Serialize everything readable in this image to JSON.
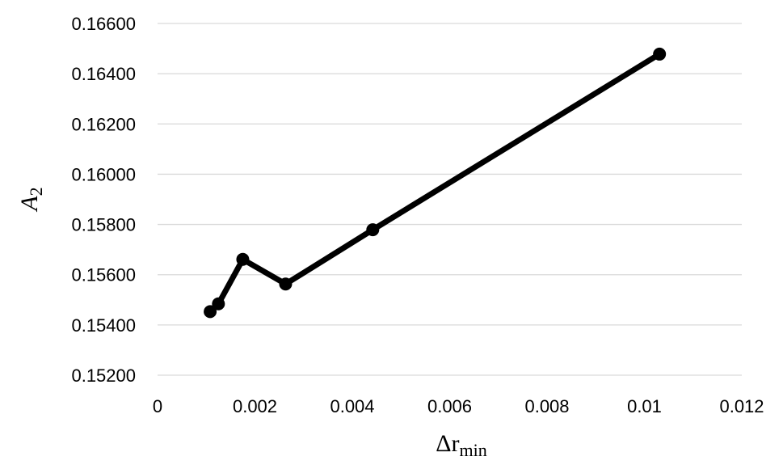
{
  "chart_data": {
    "type": "line",
    "xlabel": "Δr",
    "xlabel_sub": "min",
    "ylabel": "A",
    "ylabel_sub": "2",
    "xlim": [
      0,
      0.012
    ],
    "ylim": [
      0.152,
      0.166
    ],
    "x_ticks": [
      {
        "value": 0,
        "label": "0"
      },
      {
        "value": 0.002,
        "label": "0.002"
      },
      {
        "value": 0.004,
        "label": "0.004"
      },
      {
        "value": 0.006,
        "label": "0.006"
      },
      {
        "value": 0.008,
        "label": "0.008"
      },
      {
        "value": 0.01,
        "label": "0.01"
      },
      {
        "value": 0.012,
        "label": "0.012"
      }
    ],
    "y_ticks": [
      {
        "value": 0.152,
        "label": "0.15200"
      },
      {
        "value": 0.154,
        "label": "0.15400"
      },
      {
        "value": 0.156,
        "label": "0.15600"
      },
      {
        "value": 0.158,
        "label": "0.15800"
      },
      {
        "value": 0.16,
        "label": "0.16000"
      },
      {
        "value": 0.162,
        "label": "0.16200"
      },
      {
        "value": 0.164,
        "label": "0.16400"
      },
      {
        "value": 0.166,
        "label": "0.16600"
      }
    ],
    "grid": {
      "horizontal": true,
      "vertical": false
    },
    "legend": "none",
    "series": [
      {
        "color": "#000000",
        "marker": "circle",
        "points": [
          {
            "x": 0.00108,
            "y": 0.15453
          },
          {
            "x": 0.00125,
            "y": 0.15484
          },
          {
            "x": 0.00175,
            "y": 0.15661
          },
          {
            "x": 0.00263,
            "y": 0.15563
          },
          {
            "x": 0.00442,
            "y": 0.15779
          },
          {
            "x": 0.01031,
            "y": 0.16478
          }
        ]
      }
    ]
  }
}
